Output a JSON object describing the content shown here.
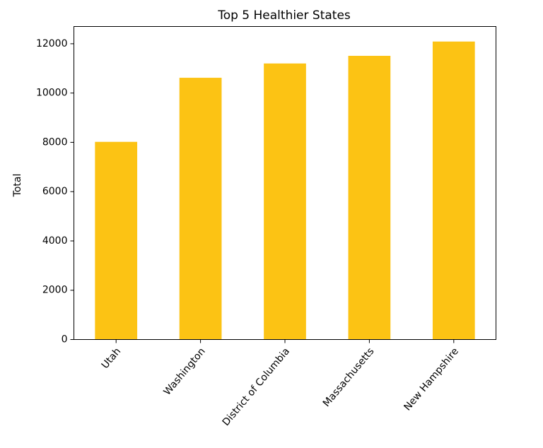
{
  "chart_data": {
    "type": "bar",
    "title": "Top 5 Healthier States",
    "xlabel": "",
    "ylabel": "Total",
    "categories": [
      "Utah",
      "Washington",
      "District of Columbia",
      "Massachusetts",
      "New Hampshire"
    ],
    "values": [
      8020,
      10620,
      11200,
      11510,
      12090
    ],
    "ylim": [
      0,
      12700
    ],
    "yticks": [
      0,
      2000,
      4000,
      6000,
      8000,
      10000,
      12000
    ],
    "ytick_labels": [
      "0",
      "2000",
      "4000",
      "6000",
      "8000",
      "10000",
      "12000"
    ],
    "bar_color": "#fcc314",
    "grid": false,
    "legend": "none"
  }
}
